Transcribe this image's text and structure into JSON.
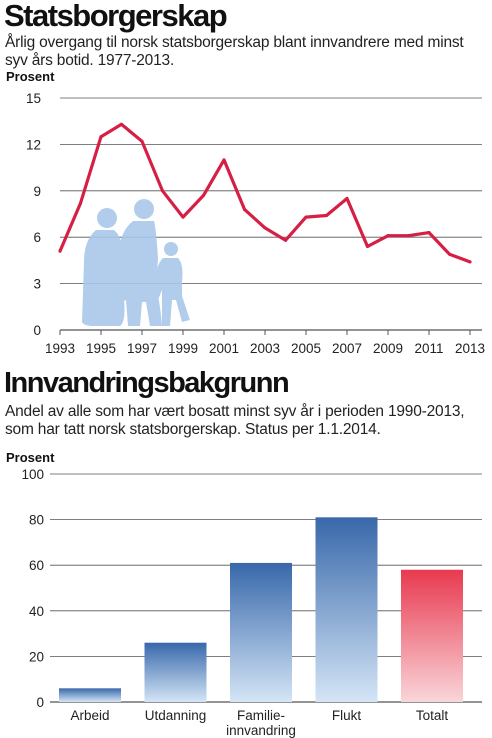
{
  "colors": {
    "line": "#d61f45",
    "grid": "#555555",
    "figure": "#a9c8e9",
    "bar_top": "#3868aa",
    "bar_bottom": "#d4e5f6",
    "total_top": "#e8394f",
    "total_bottom": "#f9d6da"
  },
  "icons": {
    "people": "family-walking-icon"
  },
  "chart_data": [
    {
      "type": "line",
      "title": "Statsborgerskap",
      "subtitle_lines": [
        "Årlig overgang til norsk statsborgerskap blant innvandrere med minst",
        "syv års botid. 1977-2013."
      ],
      "ylabel": "Prosent",
      "xlabel": "",
      "ylim": [
        0,
        15
      ],
      "yticks": [
        0,
        3,
        6,
        9,
        12,
        15
      ],
      "xlim": [
        1993,
        2013
      ],
      "xticks": [
        1993,
        1995,
        1997,
        1999,
        2001,
        2003,
        2005,
        2007,
        2009,
        2011,
        2013
      ],
      "grid": true,
      "series": [
        {
          "x": [
            1993,
            1994,
            1995,
            1996,
            1997,
            1998,
            1999,
            2000,
            2001,
            2002,
            2003,
            2004,
            2005,
            2006,
            2007,
            2008,
            2009,
            2010,
            2011,
            2012,
            2013
          ],
          "values": [
            5.1,
            8.2,
            12.5,
            13.3,
            12.2,
            9.0,
            7.3,
            8.7,
            11.0,
            7.8,
            6.6,
            5.8,
            7.3,
            7.4,
            8.5,
            5.4,
            6.1,
            6.1,
            6.3,
            4.9,
            4.4
          ]
        }
      ]
    },
    {
      "type": "bar",
      "title": "Innvandringsbakgrunn",
      "subtitle_lines": [
        "Andel av alle som har vært bosatt minst syv år i perioden 1990-2013,",
        "som har tatt norsk statsborgerskap. Status per 1.1.2014."
      ],
      "ylabel": "Prosent",
      "xlabel": "",
      "ylim": [
        0,
        100
      ],
      "yticks": [
        0,
        20,
        40,
        60,
        80,
        100
      ],
      "grid": true,
      "categories": [
        "Arbeid",
        "Utdanning",
        "Familie-\ninnvandring",
        "Flukt",
        "Totalt"
      ],
      "values": [
        6,
        26,
        61,
        81,
        58
      ],
      "highlight": "Totalt"
    }
  ]
}
